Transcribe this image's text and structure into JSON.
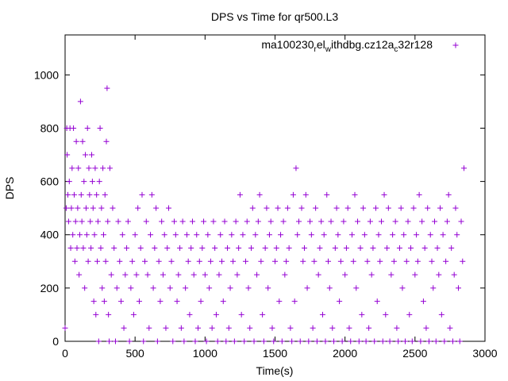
{
  "chart_data": {
    "type": "scatter",
    "title": "DPS vs Time for qr500.L3",
    "xlabel": "Time(s)",
    "ylabel": "DPS",
    "xlim": [
      0,
      3000
    ],
    "ylim": [
      0,
      1150
    ],
    "xticks": [
      0,
      500,
      1000,
      1500,
      2000,
      2500,
      3000
    ],
    "yticks": [
      0,
      200,
      400,
      600,
      800,
      1000
    ],
    "grid": false,
    "legend_position": "top-right",
    "marker": "plus",
    "series": [
      {
        "name": "ma100230_rel_withdbg.cz12a_c32r128",
        "legend_parts": [
          {
            "t": "ma100230",
            "s": "n"
          },
          {
            "t": "r",
            "s": "sub"
          },
          {
            "t": "el",
            "s": "n"
          },
          {
            "t": "w",
            "s": "sub"
          },
          {
            "t": "ithdbg.cz12a",
            "s": "n"
          },
          {
            "t": "c",
            "s": "sub"
          },
          {
            "t": "32r128",
            "s": "n"
          }
        ],
        "color": "#9400d3",
        "points": [
          [
            0,
            50
          ],
          [
            8,
            500
          ],
          [
            12,
            800
          ],
          [
            15,
            700
          ],
          [
            20,
            550
          ],
          [
            25,
            450
          ],
          [
            30,
            600
          ],
          [
            35,
            800
          ],
          [
            40,
            350
          ],
          [
            45,
            500
          ],
          [
            50,
            650
          ],
          [
            55,
            400
          ],
          [
            60,
            800
          ],
          [
            65,
            550
          ],
          [
            70,
            300
          ],
          [
            75,
            450
          ],
          [
            80,
            750
          ],
          [
            85,
            350
          ],
          [
            90,
            500
          ],
          [
            95,
            650
          ],
          [
            100,
            250
          ],
          [
            105,
            400
          ],
          [
            110,
            900
          ],
          [
            115,
            550
          ],
          [
            120,
            450
          ],
          [
            125,
            750
          ],
          [
            130,
            350
          ],
          [
            135,
            600
          ],
          [
            140,
            200
          ],
          [
            145,
            700
          ],
          [
            150,
            500
          ],
          [
            155,
            400
          ],
          [
            160,
            800
          ],
          [
            165,
            300
          ],
          [
            170,
            650
          ],
          [
            175,
            550
          ],
          [
            180,
            450
          ],
          [
            185,
            350
          ],
          [
            190,
            700
          ],
          [
            195,
            600
          ],
          [
            200,
            500
          ],
          [
            205,
            150
          ],
          [
            210,
            400
          ],
          [
            215,
            650
          ],
          [
            220,
            100
          ],
          [
            225,
            550
          ],
          [
            230,
            300
          ],
          [
            235,
            450
          ],
          [
            240,
            0
          ],
          [
            245,
            600
          ],
          [
            250,
            800
          ],
          [
            255,
            350
          ],
          [
            260,
            500
          ],
          [
            265,
            200
          ],
          [
            270,
            650
          ],
          [
            275,
            400
          ],
          [
            280,
            150
          ],
          [
            285,
            550
          ],
          [
            290,
            300
          ],
          [
            295,
            750
          ],
          [
            300,
            950
          ],
          [
            305,
            450
          ],
          [
            310,
            100
          ],
          [
            315,
            0
          ],
          [
            320,
            650
          ],
          [
            330,
            250
          ],
          [
            340,
            500
          ],
          [
            350,
            350
          ],
          [
            360,
            0
          ],
          [
            370,
            200
          ],
          [
            380,
            450
          ],
          [
            390,
            300
          ],
          [
            400,
            150
          ],
          [
            410,
            400
          ],
          [
            420,
            50
          ],
          [
            430,
            250
          ],
          [
            440,
            350
          ],
          [
            450,
            450
          ],
          [
            460,
            0
          ],
          [
            470,
            200
          ],
          [
            480,
            300
          ],
          [
            490,
            100
          ],
          [
            500,
            400
          ],
          [
            510,
            250
          ],
          [
            520,
            500
          ],
          [
            530,
            150
          ],
          [
            540,
            350
          ],
          [
            550,
            550
          ],
          [
            560,
            0
          ],
          [
            570,
            300
          ],
          [
            580,
            450
          ],
          [
            590,
            250
          ],
          [
            600,
            50
          ],
          [
            610,
            400
          ],
          [
            620,
            550
          ],
          [
            630,
            200
          ],
          [
            640,
            350
          ],
          [
            650,
            500
          ],
          [
            660,
            0
          ],
          [
            670,
            300
          ],
          [
            680,
            150
          ],
          [
            690,
            450
          ],
          [
            700,
            250
          ],
          [
            710,
            400
          ],
          [
            720,
            50
          ],
          [
            730,
            350
          ],
          [
            740,
            500
          ],
          [
            750,
            200
          ],
          [
            760,
            300
          ],
          [
            770,
            0
          ],
          [
            780,
            450
          ],
          [
            790,
            400
          ],
          [
            800,
            150
          ],
          [
            810,
            250
          ],
          [
            820,
            350
          ],
          [
            830,
            50
          ],
          [
            840,
            450
          ],
          [
            850,
            0
          ],
          [
            860,
            200
          ],
          [
            870,
            400
          ],
          [
            880,
            300
          ],
          [
            890,
            100
          ],
          [
            900,
            350
          ],
          [
            910,
            450
          ],
          [
            920,
            250
          ],
          [
            930,
            0
          ],
          [
            940,
            400
          ],
          [
            950,
            50
          ],
          [
            960,
            300
          ],
          [
            970,
            150
          ],
          [
            980,
            350
          ],
          [
            990,
            450
          ],
          [
            1000,
            250
          ],
          [
            1010,
            0
          ],
          [
            1020,
            400
          ],
          [
            1030,
            200
          ],
          [
            1040,
            300
          ],
          [
            1050,
            50
          ],
          [
            1060,
            450
          ],
          [
            1070,
            350
          ],
          [
            1080,
            100
          ],
          [
            1090,
            0
          ],
          [
            1100,
            250
          ],
          [
            1110,
            400
          ],
          [
            1120,
            300
          ],
          [
            1130,
            150
          ],
          [
            1140,
            450
          ],
          [
            1150,
            0
          ],
          [
            1160,
            350
          ],
          [
            1170,
            50
          ],
          [
            1180,
            200
          ],
          [
            1190,
            400
          ],
          [
            1200,
            300
          ],
          [
            1210,
            0
          ],
          [
            1220,
            450
          ],
          [
            1230,
            250
          ],
          [
            1240,
            350
          ],
          [
            1250,
            550
          ],
          [
            1260,
            100
          ],
          [
            1270,
            400
          ],
          [
            1280,
            0
          ],
          [
            1290,
            300
          ],
          [
            1300,
            450
          ],
          [
            1310,
            200
          ],
          [
            1320,
            50
          ],
          [
            1330,
            350
          ],
          [
            1340,
            500
          ],
          [
            1350,
            0
          ],
          [
            1360,
            400
          ],
          [
            1370,
            250
          ],
          [
            1380,
            450
          ],
          [
            1390,
            550
          ],
          [
            1400,
            300
          ],
          [
            1410,
            100
          ],
          [
            1420,
            0
          ],
          [
            1430,
            350
          ],
          [
            1440,
            500
          ],
          [
            1450,
            200
          ],
          [
            1460,
            400
          ],
          [
            1470,
            450
          ],
          [
            1480,
            50
          ],
          [
            1490,
            0
          ],
          [
            1500,
            300
          ],
          [
            1510,
            350
          ],
          [
            1520,
            500
          ],
          [
            1530,
            150
          ],
          [
            1540,
            400
          ],
          [
            1550,
            0
          ],
          [
            1560,
            450
          ],
          [
            1570,
            250
          ],
          [
            1580,
            300
          ],
          [
            1590,
            500
          ],
          [
            1600,
            350
          ],
          [
            1610,
            50
          ],
          [
            1620,
            0
          ],
          [
            1630,
            550
          ],
          [
            1640,
            150
          ],
          [
            1650,
            650
          ],
          [
            1660,
            400
          ],
          [
            1670,
            450
          ],
          [
            1680,
            0
          ],
          [
            1690,
            500
          ],
          [
            1700,
            300
          ],
          [
            1710,
            350
          ],
          [
            1720,
            550
          ],
          [
            1730,
            200
          ],
          [
            1740,
            0
          ],
          [
            1750,
            450
          ],
          [
            1760,
            400
          ],
          [
            1770,
            50
          ],
          [
            1780,
            300
          ],
          [
            1790,
            500
          ],
          [
            1800,
            0
          ],
          [
            1810,
            250
          ],
          [
            1820,
            350
          ],
          [
            1830,
            450
          ],
          [
            1840,
            100
          ],
          [
            1850,
            400
          ],
          [
            1860,
            0
          ],
          [
            1870,
            550
          ],
          [
            1880,
            300
          ],
          [
            1890,
            200
          ],
          [
            1900,
            450
          ],
          [
            1910,
            50
          ],
          [
            1920,
            0
          ],
          [
            1930,
            350
          ],
          [
            1940,
            500
          ],
          [
            1950,
            400
          ],
          [
            1960,
            150
          ],
          [
            1970,
            300
          ],
          [
            1980,
            0
          ],
          [
            1990,
            450
          ],
          [
            2000,
            250
          ],
          [
            2010,
            350
          ],
          [
            2020,
            500
          ],
          [
            2030,
            50
          ],
          [
            2040,
            0
          ],
          [
            2050,
            400
          ],
          [
            2060,
            300
          ],
          [
            2070,
            550
          ],
          [
            2080,
            200
          ],
          [
            2090,
            450
          ],
          [
            2100,
            0
          ],
          [
            2110,
            350
          ],
          [
            2120,
            100
          ],
          [
            2130,
            500
          ],
          [
            2140,
            400
          ],
          [
            2150,
            0
          ],
          [
            2160,
            300
          ],
          [
            2170,
            50
          ],
          [
            2180,
            450
          ],
          [
            2190,
            250
          ],
          [
            2200,
            350
          ],
          [
            2210,
            0
          ],
          [
            2220,
            500
          ],
          [
            2230,
            150
          ],
          [
            2240,
            400
          ],
          [
            2250,
            300
          ],
          [
            2260,
            450
          ],
          [
            2270,
            0
          ],
          [
            2280,
            550
          ],
          [
            2290,
            100
          ],
          [
            2300,
            350
          ],
          [
            2310,
            500
          ],
          [
            2320,
            0
          ],
          [
            2330,
            250
          ],
          [
            2340,
            400
          ],
          [
            2350,
            300
          ],
          [
            2360,
            450
          ],
          [
            2370,
            50
          ],
          [
            2380,
            0
          ],
          [
            2390,
            350
          ],
          [
            2400,
            500
          ],
          [
            2410,
            200
          ],
          [
            2420,
            400
          ],
          [
            2430,
            0
          ],
          [
            2440,
            300
          ],
          [
            2450,
            450
          ],
          [
            2460,
            100
          ],
          [
            2470,
            350
          ],
          [
            2480,
            0
          ],
          [
            2490,
            500
          ],
          [
            2500,
            250
          ],
          [
            2510,
            400
          ],
          [
            2520,
            300
          ],
          [
            2530,
            550
          ],
          [
            2540,
            0
          ],
          [
            2550,
            450
          ],
          [
            2560,
            150
          ],
          [
            2570,
            350
          ],
          [
            2580,
            50
          ],
          [
            2590,
            500
          ],
          [
            2600,
            0
          ],
          [
            2610,
            400
          ],
          [
            2620,
            300
          ],
          [
            2630,
            200
          ],
          [
            2640,
            450
          ],
          [
            2650,
            0
          ],
          [
            2660,
            350
          ],
          [
            2670,
            250
          ],
          [
            2680,
            500
          ],
          [
            2690,
            100
          ],
          [
            2700,
            400
          ],
          [
            2710,
            0
          ],
          [
            2720,
            300
          ],
          [
            2730,
            450
          ],
          [
            2740,
            550
          ],
          [
            2750,
            50
          ],
          [
            2760,
            350
          ],
          [
            2770,
            0
          ],
          [
            2780,
            250
          ],
          [
            2790,
            500
          ],
          [
            2800,
            400
          ],
          [
            2810,
            200
          ],
          [
            2820,
            0
          ],
          [
            2830,
            450
          ],
          [
            2840,
            300
          ],
          [
            2850,
            650
          ]
        ]
      }
    ]
  }
}
